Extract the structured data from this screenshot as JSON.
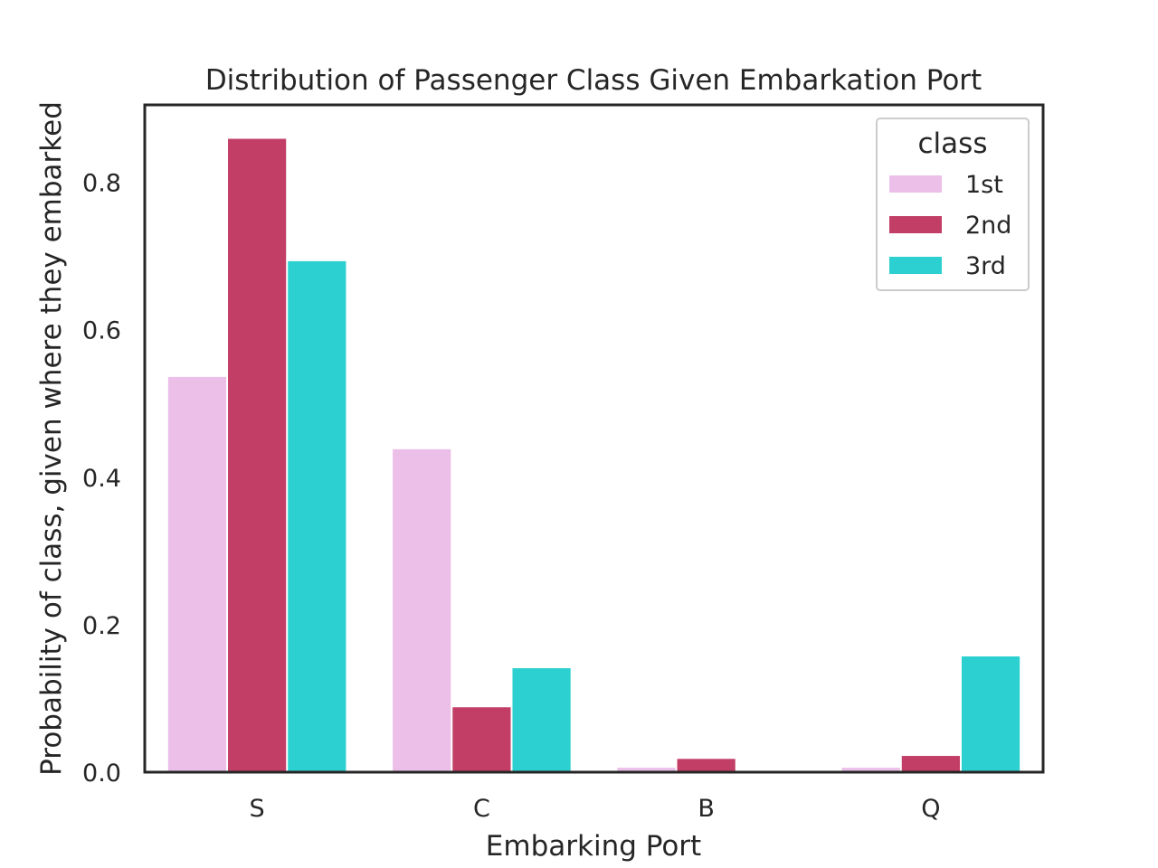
{
  "chart_data": {
    "type": "bar",
    "title": "Distribution of Passenger Class Given Embarkation Port",
    "xlabel": "Embarking Port",
    "ylabel": "Probability of class, given where they embarked",
    "categories": [
      "S",
      "C",
      "B",
      "Q"
    ],
    "ylim": [
      0,
      0.905
    ],
    "yticks": [
      0.0,
      0.2,
      0.4,
      0.6,
      0.8
    ],
    "ytick_labels": [
      "0.0",
      "0.2",
      "0.4",
      "0.6",
      "0.8"
    ],
    "grid": false,
    "legend": {
      "title": "class",
      "placement": "upper right"
    },
    "series": [
      {
        "name": "1st",
        "color": "#ebbfe8",
        "values": [
          0.536,
          0.438,
          0.006,
          0.006
        ]
      },
      {
        "name": "2nd",
        "color": "#c23e67",
        "values": [
          0.859,
          0.088,
          0.018,
          0.022
        ]
      },
      {
        "name": "3rd",
        "color": "#2dd0d0",
        "values": [
          0.693,
          0.141,
          0.0,
          0.157
        ]
      }
    ]
  }
}
